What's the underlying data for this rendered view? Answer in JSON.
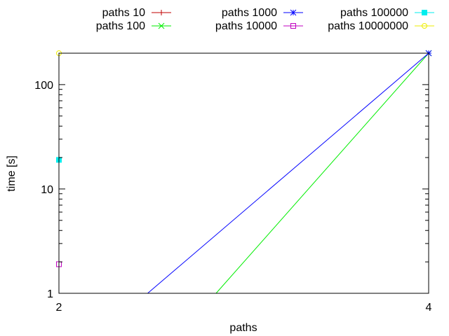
{
  "chart_data": {
    "type": "line",
    "xlabel": "paths",
    "ylabel": "time [s]",
    "x_ticks": [
      "2",
      "4"
    ],
    "y_ticks": [
      "1",
      "10",
      "100"
    ],
    "xlim": [
      2,
      4
    ],
    "ylim": [
      1,
      200
    ],
    "y_scale": "log",
    "grid": false,
    "legend_position": "top",
    "series": [
      {
        "name": "paths 10",
        "color": "#c00000",
        "marker": "plus",
        "points": []
      },
      {
        "name": "paths 100",
        "color": "#00ee00",
        "marker": "cross",
        "points": [
          [
            2.85,
            1
          ],
          [
            4,
            200
          ]
        ]
      },
      {
        "name": "paths 1000",
        "color": "#0000ff",
        "marker": "star",
        "points": [
          [
            2.48,
            1
          ],
          [
            4,
            200
          ]
        ]
      },
      {
        "name": "paths 10000",
        "color": "#c000c0",
        "marker": "open-square",
        "points": [
          [
            2,
            1.9
          ]
        ]
      },
      {
        "name": "paths 100000",
        "color": "#00eeee",
        "marker": "filled-square",
        "points": [
          [
            2,
            19
          ]
        ]
      },
      {
        "name": "paths 10000000",
        "color": "#eeee00",
        "marker": "open-circle",
        "points": [
          [
            2,
            200
          ]
        ]
      }
    ]
  }
}
